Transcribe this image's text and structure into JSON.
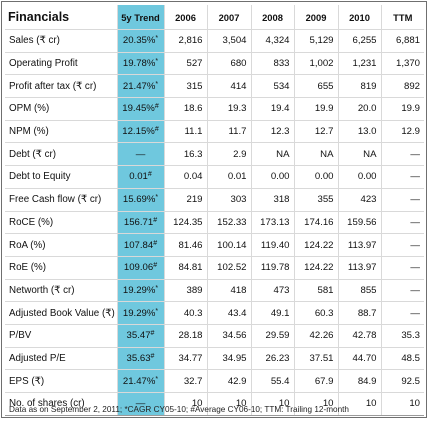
{
  "title": "Financials",
  "columns": [
    "5y Trend",
    "2006",
    "2007",
    "2008",
    "2009",
    "2010",
    "TTM"
  ],
  "rows": [
    {
      "label": "Sales (₹ cr)",
      "trend": "20.35%",
      "mark": "*",
      "values": [
        "2,816",
        "3,504",
        "4,324",
        "5,129",
        "6,255",
        "6,881"
      ]
    },
    {
      "label": "Operating Profit",
      "trend": "19.78%",
      "mark": "*",
      "values": [
        "527",
        "680",
        "833",
        "1,002",
        "1,231",
        "1,370"
      ]
    },
    {
      "label": "Profit after tax (₹ cr)",
      "trend": "21.47%",
      "mark": "*",
      "values": [
        "315",
        "414",
        "534",
        "655",
        "819",
        "892"
      ]
    },
    {
      "label": "OPM (%)",
      "trend": "19.45%",
      "mark": "#",
      "values": [
        "18.6",
        "19.3",
        "19.4",
        "19.9",
        "20.0",
        "19.9"
      ]
    },
    {
      "label": "NPM (%)",
      "trend": "12.15%",
      "mark": "#",
      "values": [
        "11.1",
        "11.7",
        "12.3",
        "12.7",
        "13.0",
        "12.9"
      ]
    },
    {
      "label": "Debt (₹ cr)",
      "trend": "—",
      "mark": "",
      "values": [
        "16.3",
        "2.9",
        "NA",
        "NA",
        "NA",
        "—"
      ]
    },
    {
      "label": "Debt to Equity",
      "trend": "0.01",
      "mark": "#",
      "values": [
        "0.04",
        "0.01",
        "0.00",
        "0.00",
        "0.00",
        "—"
      ]
    },
    {
      "label": "Free Cash flow (₹ cr)",
      "trend": "15.69%",
      "mark": "*",
      "values": [
        "219",
        "303",
        "318",
        "355",
        "423",
        "—"
      ]
    },
    {
      "label": "RoCE (%)",
      "trend": "156.71",
      "mark": "#",
      "values": [
        "124.35",
        "152.33",
        "173.13",
        "174.16",
        "159.56",
        "—"
      ]
    },
    {
      "label": "RoA (%)",
      "trend": "107.84",
      "mark": "#",
      "values": [
        "81.46",
        "100.14",
        "119.40",
        "124.22",
        "113.97",
        "—"
      ]
    },
    {
      "label": "RoE (%)",
      "trend": "109.06",
      "mark": "#",
      "values": [
        "84.81",
        "102.52",
        "119.78",
        "124.22",
        "113.97",
        "—"
      ]
    },
    {
      "label": "Networth (₹ cr)",
      "trend": "19.29%",
      "mark": "*",
      "values": [
        "389",
        "418",
        "473",
        "581",
        "855",
        "—"
      ]
    },
    {
      "label": "Adjusted Book Value (₹)",
      "trend": "19.29%",
      "mark": "*",
      "values": [
        "40.3",
        "43.4",
        "49.1",
        "60.3",
        "88.7",
        "—"
      ]
    },
    {
      "label": "P/BV",
      "trend": "35.47",
      "mark": "#",
      "values": [
        "28.18",
        "34.56",
        "29.59",
        "42.26",
        "42.78",
        "35.3"
      ]
    },
    {
      "label": "Adjusted P/E",
      "trend": "35.63",
      "mark": "#",
      "values": [
        "34.77",
        "34.95",
        "26.23",
        "37.51",
        "44.70",
        "48.5"
      ]
    },
    {
      "label": "EPS (₹)",
      "trend": "21.47%",
      "mark": "*",
      "values": [
        "32.7",
        "42.9",
        "55.4",
        "67.9",
        "84.9",
        "92.5"
      ]
    },
    {
      "label": "No. of shares (cr)",
      "trend": "—",
      "mark": "",
      "values": [
        "10",
        "10",
        "10",
        "10",
        "10",
        "10"
      ]
    }
  ],
  "footnote": "Data as on September 2, 2011;    *CAGR CY05-10; #Average CY06-10; TTM: Trailing 12-month",
  "colors": {
    "trend_column": "#6fc8de",
    "border": "#6f6f6f"
  }
}
